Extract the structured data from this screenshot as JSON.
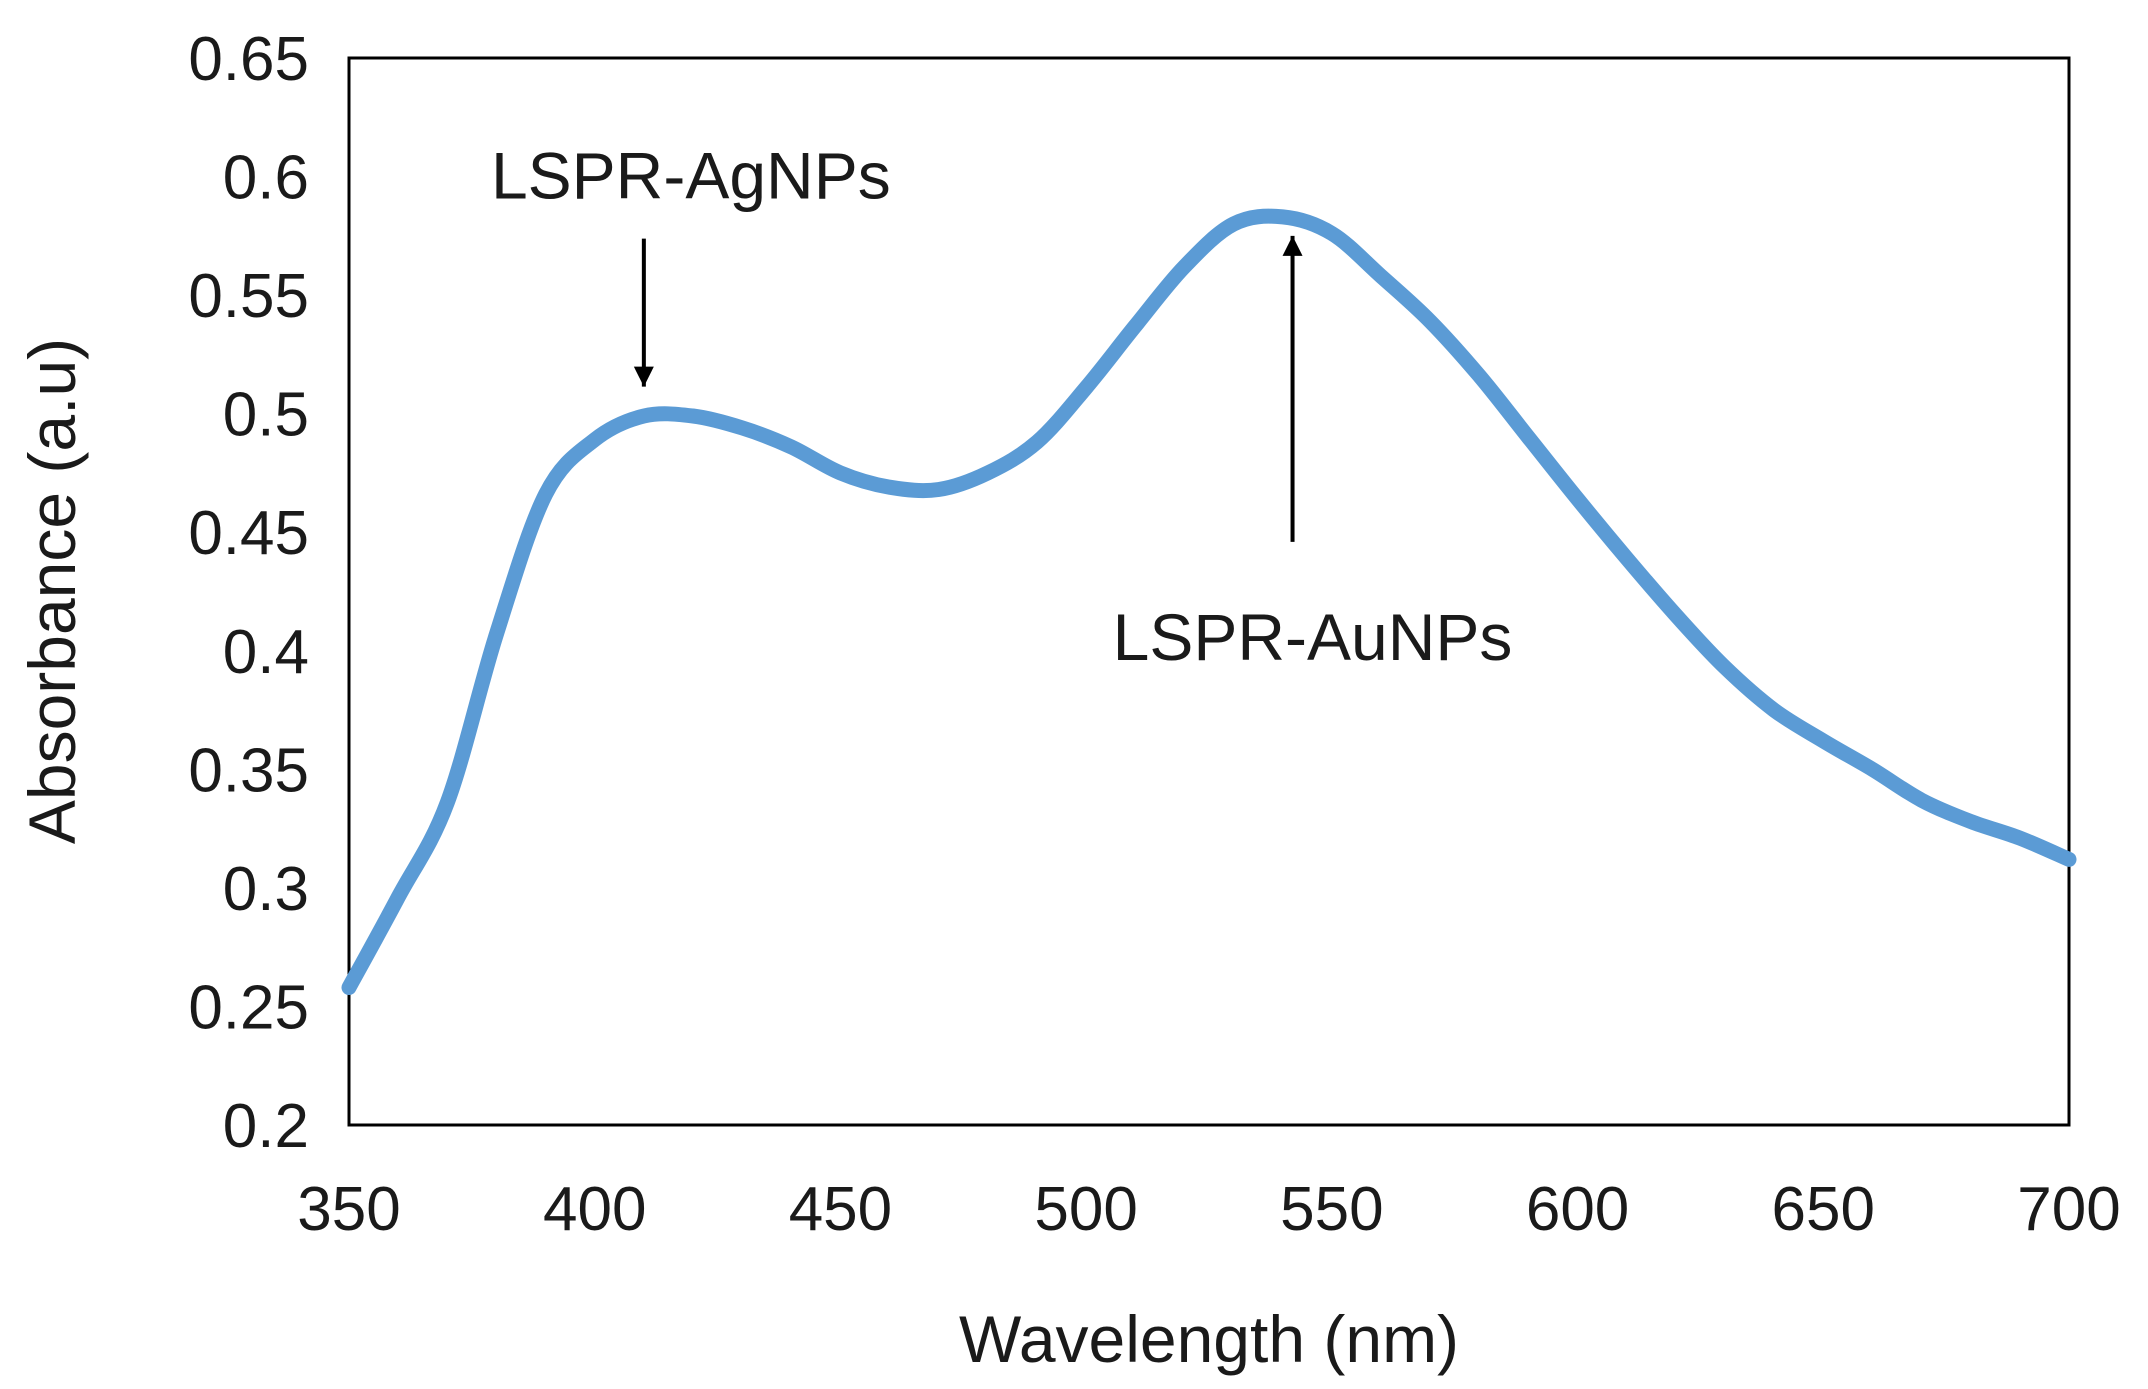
{
  "chart_data": {
    "type": "line",
    "title": "",
    "xlabel": "Wavelength (nm)",
    "ylabel": "Absorbance (a.u)",
    "xlim": [
      350,
      700
    ],
    "ylim": [
      0.2,
      0.65
    ],
    "x_ticks": [
      350,
      400,
      450,
      500,
      550,
      600,
      650,
      700
    ],
    "x_tick_labels": [
      "350",
      "400",
      "450",
      "500",
      "550",
      "600",
      "650",
      "700"
    ],
    "y_ticks": [
      0.2,
      0.25,
      0.3,
      0.35,
      0.4,
      0.45,
      0.5,
      0.55,
      0.6,
      0.65
    ],
    "y_tick_labels": [
      "0.2",
      "0.25",
      "0.3",
      "0.35",
      "0.4",
      "0.45",
      "0.5",
      "0.55",
      "0.6",
      "0.65"
    ],
    "grid": false,
    "series": [
      {
        "name": "Absorbance",
        "color": "#5B9BD5",
        "x": [
          350,
          360,
          370,
          380,
          390,
          400,
          410,
          420,
          430,
          440,
          450,
          460,
          470,
          480,
          490,
          500,
          510,
          520,
          530,
          540,
          550,
          560,
          570,
          580,
          590,
          600,
          610,
          620,
          630,
          640,
          650,
          660,
          670,
          680,
          690,
          700
        ],
        "y": [
          0.258,
          0.296,
          0.336,
          0.407,
          0.466,
          0.489,
          0.499,
          0.499,
          0.494,
          0.486,
          0.475,
          0.469,
          0.468,
          0.475,
          0.488,
          0.511,
          0.537,
          0.562,
          0.58,
          0.583,
          0.576,
          0.558,
          0.539,
          0.516,
          0.49,
          0.464,
          0.439,
          0.415,
          0.393,
          0.375,
          0.362,
          0.35,
          0.337,
          0.328,
          0.321,
          0.312
        ]
      }
    ],
    "annotations": [
      {
        "text": "LSPR-AgNPs",
        "x": 410,
        "y": 0.5,
        "arrow": "down"
      },
      {
        "text": "LSPR-AuNPs",
        "x": 542,
        "y": 0.583,
        "arrow": "up"
      }
    ]
  }
}
